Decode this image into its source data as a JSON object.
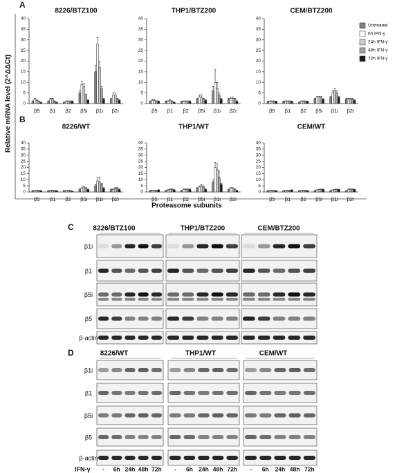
{
  "panel_labels": [
    "A",
    "B",
    "C",
    "D"
  ],
  "y_axis_label": "Relative mRNA level (2^ΔΔCt)",
  "x_axis_label": "Proteasome subunits",
  "categories": [
    "β5",
    "β1",
    "β2",
    "β5i",
    "β1i",
    "β2i"
  ],
  "legend": [
    {
      "name": "Untreated",
      "color": "#808080"
    },
    {
      "name": "6h IFN-γ",
      "color": "#ffffff"
    },
    {
      "name": "24h IFN-γ",
      "color": "#cfcfcf"
    },
    {
      "name": "48h IFN-γ",
      "color": "#a3a3a3"
    },
    {
      "name": "72h IFN-γ",
      "color": "#1e1e1e"
    }
  ],
  "chart_data": [
    {
      "type": "bar",
      "title": "8226/BTZ100",
      "ylim": [
        0,
        40
      ],
      "yticks": [
        0,
        5,
        10,
        15,
        20,
        25,
        30,
        35,
        40
      ],
      "values": [
        [
          1,
          1,
          0.5,
          5,
          15,
          2
        ],
        [
          2,
          2,
          1,
          9,
          28,
          4
        ],
        [
          1.5,
          2,
          1,
          8,
          17,
          4
        ],
        [
          1,
          1,
          1,
          4,
          7,
          2
        ],
        [
          0.5,
          0.5,
          1,
          1.5,
          2,
          1.5
        ]
      ],
      "errors": [
        [
          0.3,
          0.3,
          0.2,
          1,
          3,
          0.5
        ],
        [
          0.5,
          0.5,
          0.3,
          1.5,
          3,
          1
        ],
        [
          0.5,
          0.5,
          0.3,
          1.5,
          3,
          1
        ],
        [
          0.3,
          0.3,
          0.3,
          0.5,
          1,
          0.5
        ],
        [
          0.2,
          0.2,
          0.3,
          0.3,
          0.5,
          0.3
        ]
      ]
    },
    {
      "type": "bar",
      "title": "THP1/BTZ200",
      "ylim": [
        0,
        40
      ],
      "yticks": [
        0,
        5,
        10,
        15,
        20,
        25,
        30,
        35,
        40
      ],
      "values": [
        [
          1,
          1,
          1,
          2,
          6,
          2
        ],
        [
          1.5,
          1,
          1,
          3,
          10,
          2.5
        ],
        [
          1.5,
          1.5,
          1,
          3,
          7,
          2.5
        ],
        [
          1,
          1,
          1,
          2,
          4,
          2
        ],
        [
          1,
          0.5,
          1,
          1.5,
          2,
          1
        ]
      ],
      "errors": [
        [
          0.3,
          0.3,
          0.2,
          0.5,
          2,
          0.5
        ],
        [
          0.5,
          0.3,
          0.3,
          1,
          6,
          0.5
        ],
        [
          0.5,
          0.5,
          0.3,
          1,
          3,
          0.5
        ],
        [
          0.3,
          0.3,
          0.3,
          0.5,
          1,
          0.5
        ],
        [
          0.3,
          0.2,
          0.3,
          0.3,
          0.5,
          0.3
        ]
      ]
    },
    {
      "type": "bar",
      "title": "CEM/BTZ200",
      "ylim": [
        0,
        40
      ],
      "yticks": [
        0,
        5,
        10,
        15,
        20,
        25,
        30,
        35,
        40
      ],
      "values": [
        [
          1,
          1,
          0.5,
          2,
          3,
          2
        ],
        [
          1,
          1,
          1,
          3,
          5,
          2
        ],
        [
          1,
          1,
          1,
          3,
          6,
          2
        ],
        [
          1,
          1,
          1,
          3,
          5,
          2
        ],
        [
          1,
          1,
          1,
          2,
          3,
          1.5
        ]
      ],
      "errors": [
        [
          0.2,
          0.2,
          0.2,
          0.5,
          0.5,
          0.5
        ],
        [
          0.3,
          0.3,
          0.3,
          0.5,
          1,
          0.5
        ],
        [
          0.3,
          0.3,
          0.3,
          0.5,
          1,
          0.5
        ],
        [
          0.3,
          0.3,
          0.3,
          0.5,
          1,
          0.5
        ],
        [
          0.2,
          0.2,
          0.2,
          0.3,
          0.5,
          0.3
        ]
      ]
    },
    {
      "type": "bar",
      "title": "8226/WT",
      "ylim": [
        0,
        40
      ],
      "yticks": [
        0,
        5,
        10,
        15,
        20,
        25,
        30,
        35,
        40
      ],
      "values": [
        [
          1,
          1,
          1,
          2,
          5,
          2
        ],
        [
          1,
          1,
          1,
          3,
          9,
          2
        ],
        [
          1,
          1,
          1,
          4,
          8,
          3
        ],
        [
          1,
          1,
          1,
          3,
          6,
          3
        ],
        [
          1,
          1,
          0.5,
          2,
          3,
          2
        ]
      ],
      "errors": [
        [
          0.2,
          0.2,
          0.2,
          0.5,
          1,
          0.3
        ],
        [
          0.3,
          0.3,
          0.3,
          1,
          3,
          0.5
        ],
        [
          0.3,
          0.3,
          0.3,
          1,
          4,
          0.5
        ],
        [
          0.3,
          0.3,
          0.3,
          0.5,
          1,
          0.5
        ],
        [
          0.2,
          0.2,
          0.2,
          0.3,
          0.5,
          0.3
        ]
      ]
    },
    {
      "type": "bar",
      "title": "THP1/WT",
      "ylim": [
        0,
        40
      ],
      "yticks": [
        0,
        5,
        10,
        15,
        20,
        25,
        30,
        35,
        40
      ],
      "values": [
        [
          1,
          1,
          1,
          3,
          8,
          2
        ],
        [
          1,
          1.5,
          2,
          4,
          20,
          3
        ],
        [
          1,
          2,
          2,
          5,
          18,
          3
        ],
        [
          1,
          2,
          2,
          4,
          12,
          2
        ],
        [
          1.5,
          1.5,
          2,
          2,
          6,
          1
        ]
      ],
      "errors": [
        [
          0.3,
          0.3,
          0.3,
          0.5,
          2,
          0.5
        ],
        [
          0.3,
          0.5,
          0.5,
          1,
          4,
          0.5
        ],
        [
          0.3,
          0.5,
          0.5,
          1,
          5,
          0.5
        ],
        [
          0.3,
          0.5,
          0.5,
          1,
          5,
          0.5
        ],
        [
          0.5,
          0.5,
          0.5,
          0.5,
          1,
          0.3
        ]
      ]
    },
    {
      "type": "bar",
      "title": "CEM/WT",
      "ylim": [
        0,
        40
      ],
      "yticks": [
        0,
        5,
        10,
        15,
        20,
        25,
        30,
        35,
        40
      ],
      "values": [
        [
          1,
          1,
          1,
          1,
          1,
          1
        ],
        [
          1,
          1,
          1,
          1.5,
          1.5,
          2
        ],
        [
          1,
          1,
          1,
          2,
          2,
          2
        ],
        [
          1,
          1,
          1,
          2,
          2,
          2
        ],
        [
          1,
          1.5,
          1,
          2,
          2,
          2
        ]
      ],
      "errors": [
        [
          0.2,
          0.2,
          0.2,
          0.2,
          0.2,
          0.2
        ],
        [
          0.3,
          0.3,
          0.3,
          0.3,
          0.3,
          0.5
        ],
        [
          0.3,
          0.3,
          0.3,
          0.3,
          0.3,
          0.5
        ],
        [
          0.3,
          0.3,
          0.3,
          0.3,
          0.3,
          0.5
        ],
        [
          0.2,
          0.3,
          0.2,
          0.3,
          0.3,
          0.3
        ]
      ]
    }
  ],
  "blots": [
    {
      "groups": [
        "8226/BTZ100",
        "THP1/BTZ200",
        "CEM/BTZ200"
      ],
      "rows": [
        "β1i",
        "β1",
        "β5i",
        "β5",
        "β-actin"
      ]
    },
    {
      "groups": [
        "8226/WT",
        "THP1/WT",
        "CEM/WT"
      ],
      "rows": [
        "β1i",
        "β1",
        "β5i",
        "β5",
        "β-actin"
      ],
      "treatment_label": "IFN-γ",
      "lanes": [
        "-",
        "6h",
        "24h",
        "48h",
        "72h"
      ]
    }
  ]
}
